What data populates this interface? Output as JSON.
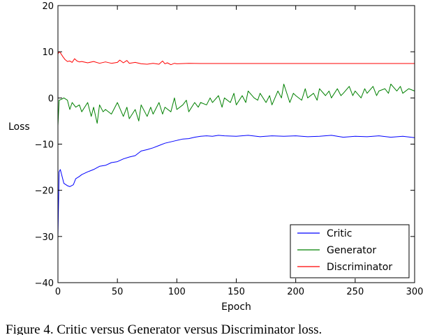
{
  "chart_data": {
    "type": "line",
    "title": "",
    "xlabel": "Epoch",
    "ylabel": "Loss",
    "xlim": [
      0,
      300
    ],
    "ylim": [
      -40,
      20
    ],
    "xticks": [
      0,
      50,
      100,
      150,
      200,
      250,
      300
    ],
    "yticks": [
      -40,
      -30,
      -20,
      -10,
      0,
      10,
      20
    ],
    "xtick_labels": [
      "0",
      "50",
      "100",
      "150",
      "200",
      "250",
      "300"
    ],
    "ytick_labels": [
      "−40",
      "−30",
      "−20",
      "−10",
      "0",
      "10",
      "20"
    ],
    "grid": false,
    "legend_position": "lower-right",
    "series": [
      {
        "name": "Critic",
        "color": "#0000ff",
        "x": [
          0,
          1,
          2,
          3,
          5,
          8,
          10,
          13,
          15,
          18,
          20,
          25,
          30,
          35,
          40,
          45,
          50,
          55,
          60,
          65,
          70,
          75,
          80,
          85,
          90,
          95,
          100,
          105,
          110,
          115,
          120,
          125,
          130,
          135,
          140,
          150,
          160,
          170,
          180,
          190,
          200,
          210,
          220,
          230,
          240,
          250,
          260,
          270,
          280,
          290,
          300
        ],
        "y": [
          -30,
          -16,
          -15.5,
          -16.5,
          -18.5,
          -19,
          -19.2,
          -18.8,
          -17.5,
          -17,
          -16.6,
          -16,
          -15.5,
          -14.8,
          -14.6,
          -14,
          -13.8,
          -13.2,
          -12.8,
          -12.5,
          -11.5,
          -11.2,
          -10.8,
          -10.3,
          -9.8,
          -9.5,
          -9.2,
          -8.9,
          -8.8,
          -8.5,
          -8.3,
          -8.2,
          -8.3,
          -8.1,
          -8.2,
          -8.3,
          -8.1,
          -8.4,
          -8.2,
          -8.3,
          -8.2,
          -8.4,
          -8.3,
          -8.1,
          -8.5,
          -8.3,
          -8.4,
          -8.2,
          -8.5,
          -8.3,
          -8.6
        ]
      },
      {
        "name": "Generator",
        "color": "#008000",
        "x": [
          0,
          1,
          3,
          5,
          8,
          10,
          12,
          15,
          18,
          20,
          25,
          28,
          30,
          33,
          35,
          38,
          40,
          45,
          50,
          55,
          58,
          60,
          65,
          68,
          70,
          75,
          78,
          80,
          85,
          88,
          90,
          95,
          98,
          100,
          105,
          108,
          110,
          115,
          118,
          120,
          125,
          128,
          130,
          135,
          138,
          140,
          145,
          148,
          150,
          155,
          158,
          160,
          165,
          168,
          170,
          175,
          178,
          180,
          185,
          188,
          190,
          195,
          198,
          200,
          205,
          208,
          210,
          215,
          218,
          220,
          225,
          228,
          230,
          235,
          238,
          240,
          245,
          248,
          250,
          255,
          258,
          260,
          265,
          268,
          270,
          275,
          278,
          280,
          285,
          288,
          290,
          295,
          300
        ],
        "y": [
          -6,
          -0.5,
          -0.3,
          0,
          -0.5,
          -2.5,
          -1,
          -2,
          -1.5,
          -3,
          -1,
          -4,
          -2,
          -5.5,
          -1.5,
          -3,
          -2.5,
          -3.5,
          -1,
          -4,
          -2,
          -4.5,
          -2.5,
          -5,
          -1.5,
          -4,
          -2,
          -3.5,
          -1,
          -3.5,
          -2,
          -3,
          0,
          -2.5,
          -1.5,
          -0.5,
          -3,
          -1,
          -2,
          -1,
          -1.5,
          0,
          -1,
          0.5,
          -2,
          0,
          -1,
          1,
          -1.5,
          0.5,
          -1,
          1.5,
          0,
          -0.5,
          1,
          -1,
          0.5,
          -1.5,
          1.5,
          0,
          3,
          -1,
          1,
          0.5,
          -0.5,
          2,
          0,
          1,
          -0.5,
          2,
          0.5,
          1.5,
          0,
          2,
          0.5,
          1,
          2.5,
          0.5,
          1.5,
          0,
          2,
          1,
          2.5,
          0.5,
          1.5,
          2,
          1,
          3,
          1.5,
          2.5,
          1,
          2,
          1.5
        ]
      },
      {
        "name": "Discriminator",
        "color": "#ff0000",
        "x": [
          0,
          1,
          2,
          4,
          6,
          8,
          10,
          12,
          14,
          16,
          18,
          20,
          25,
          30,
          35,
          40,
          45,
          50,
          52,
          55,
          58,
          60,
          65,
          70,
          75,
          80,
          85,
          88,
          90,
          92,
          95,
          98,
          100,
          110,
          120,
          150,
          200,
          250,
          300
        ],
        "y": [
          9.5,
          10,
          9.8,
          9,
          8.3,
          7.9,
          8.0,
          7.7,
          8.5,
          8.0,
          7.8,
          7.9,
          7.6,
          7.9,
          7.5,
          7.8,
          7.5,
          7.7,
          8.2,
          7.6,
          8.1,
          7.5,
          7.7,
          7.4,
          7.3,
          7.5,
          7.3,
          8.0,
          7.4,
          7.6,
          7.2,
          7.5,
          7.4,
          7.5,
          7.45,
          7.45,
          7.45,
          7.45,
          7.45
        ]
      }
    ]
  },
  "caption": "Figure 4. Critic versus Generator versus Discriminator loss."
}
